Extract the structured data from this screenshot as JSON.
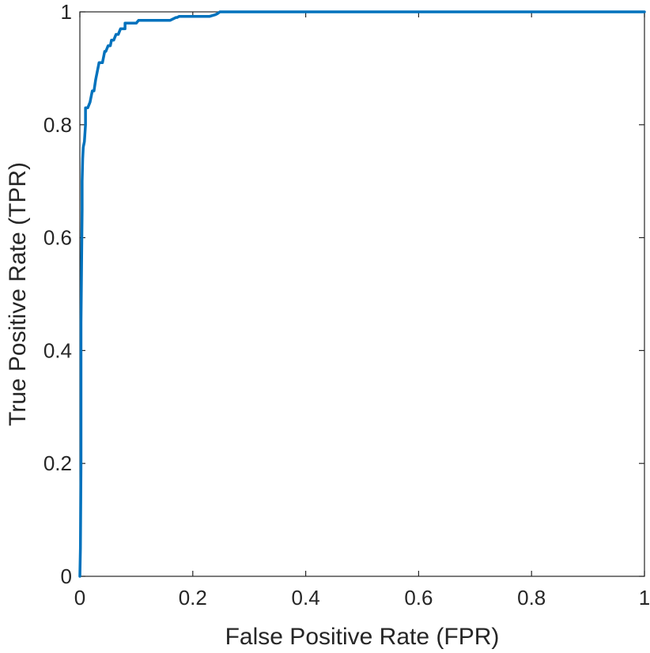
{
  "chart_data": {
    "type": "line",
    "xlabel": "False Positive Rate (FPR)",
    "ylabel": "True Positive Rate (TPR)",
    "xlim": [
      0,
      1
    ],
    "ylim": [
      0,
      1
    ],
    "xticks": [
      0,
      0.2,
      0.4,
      0.6,
      0.8,
      1
    ],
    "yticks": [
      0,
      0.2,
      0.4,
      0.6,
      0.8,
      1
    ],
    "xtick_labels": [
      "0",
      "0.2",
      "0.4",
      "0.6",
      "0.8",
      "1"
    ],
    "ytick_labels": [
      "0",
      "0.2",
      "0.4",
      "0.6",
      "0.8",
      "1"
    ],
    "grid": false,
    "colors": {
      "line": "#0072BD",
      "axis": "#262626"
    },
    "series": [
      {
        "x": [
          0,
          0.001,
          0.002,
          0.002,
          0.003,
          0.004,
          0.004,
          0.005,
          0.006,
          0.008,
          0.01,
          0.01,
          0.014,
          0.018,
          0.02,
          0.022,
          0.025,
          0.028,
          0.03,
          0.032,
          0.034,
          0.034,
          0.04,
          0.042,
          0.044,
          0.046,
          0.05,
          0.054,
          0.056,
          0.06,
          0.064,
          0.068,
          0.072,
          0.076,
          0.08,
          0.08,
          0.086,
          0.09,
          0.096,
          0.1,
          0.104,
          0.11,
          0.118,
          0.126,
          0.14,
          0.16,
          0.17,
          0.172,
          0.176,
          0.19,
          0.21,
          0.23,
          0.24,
          0.244,
          0.248,
          0.28,
          0.4,
          0.6,
          0.8,
          1.0
        ],
        "y": [
          0,
          0.05,
          0.2,
          0.45,
          0.55,
          0.65,
          0.7,
          0.74,
          0.76,
          0.77,
          0.8,
          0.83,
          0.83,
          0.84,
          0.85,
          0.86,
          0.86,
          0.88,
          0.89,
          0.9,
          0.91,
          0.91,
          0.91,
          0.92,
          0.93,
          0.93,
          0.94,
          0.94,
          0.95,
          0.95,
          0.96,
          0.96,
          0.97,
          0.97,
          0.97,
          0.98,
          0.98,
          0.98,
          0.98,
          0.98,
          0.985,
          0.985,
          0.985,
          0.985,
          0.985,
          0.985,
          0.99,
          0.99,
          0.992,
          0.992,
          0.992,
          0.992,
          0.995,
          0.997,
          1.0,
          1.0,
          1.0,
          1.0,
          1.0,
          1.0
        ]
      }
    ]
  }
}
